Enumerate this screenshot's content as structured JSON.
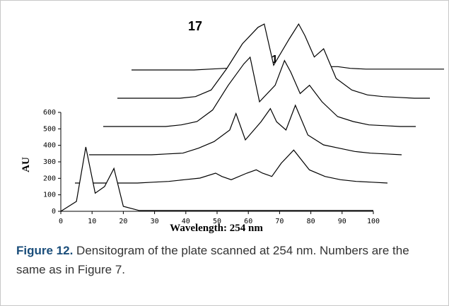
{
  "chart_data": {
    "type": "waterfall",
    "xlabel": "Wavelength: 254 nm",
    "ylabel": "AU",
    "annotations": [
      "17",
      "18"
    ],
    "xlim": [
      0,
      100
    ],
    "xticks": [
      0,
      10,
      20,
      30,
      40,
      50,
      60,
      70,
      80,
      90,
      100
    ],
    "ylim": [
      0,
      600
    ],
    "yticks": [
      0,
      100,
      200,
      300,
      400,
      500,
      600
    ],
    "color": "#000000",
    "x": [
      0,
      5,
      8,
      11,
      14,
      17,
      20,
      25,
      30,
      35,
      40,
      45,
      47,
      50,
      55,
      58,
      60,
      63,
      66,
      70,
      75,
      80,
      85,
      90,
      95,
      100
    ],
    "series": [
      {
        "values": [
          0,
          60,
          390,
          110,
          150,
          260,
          30,
          5,
          5,
          5,
          5,
          5,
          5,
          5,
          5,
          5,
          5,
          5,
          5,
          5,
          5,
          5,
          5,
          5,
          5,
          5
        ]
      },
      {
        "values": [
          0,
          0,
          0,
          0,
          0,
          0,
          0,
          5,
          10,
          20,
          30,
          60,
          40,
          20,
          60,
          80,
          60,
          40,
          120,
          200,
          80,
          40,
          20,
          10,
          5,
          0
        ]
      },
      {
        "values": [
          0,
          0,
          0,
          0,
          0,
          0,
          0,
          5,
          10,
          40,
          80,
          150,
          250,
          90,
          200,
          280,
          200,
          150,
          300,
          120,
          60,
          40,
          20,
          10,
          5,
          0
        ]
      },
      {
        "values": [
          0,
          0,
          0,
          0,
          0,
          0,
          0,
          10,
          30,
          100,
          250,
          380,
          420,
          150,
          250,
          400,
          330,
          200,
          250,
          150,
          60,
          30,
          10,
          5,
          0,
          0
        ]
      },
      {
        "values": [
          0,
          0,
          0,
          0,
          0,
          0,
          0,
          10,
          50,
          180,
          330,
          430,
          450,
          200,
          360,
          450,
          380,
          250,
          300,
          120,
          50,
          20,
          10,
          5,
          0,
          0
        ]
      },
      {
        "values": [
          0,
          0,
          0,
          0,
          0,
          0,
          0,
          5,
          10,
          15,
          20,
          30,
          30,
          20,
          30,
          40,
          30,
          20,
          20,
          10,
          5,
          5,
          5,
          5,
          5,
          5
        ]
      }
    ]
  },
  "caption": {
    "label": "Figure 12.",
    "text": "Densitogram of the plate scanned at 254 nm. Numbers are the same as in Figure 7."
  }
}
